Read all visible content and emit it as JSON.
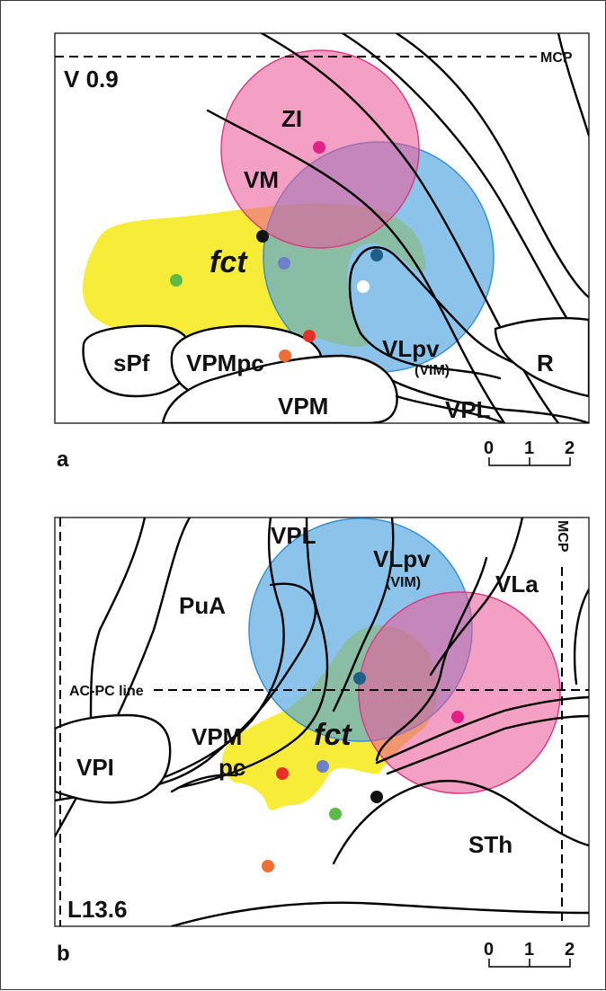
{
  "panel_a": {
    "panel_label": "a",
    "slice_label": "V 0.9",
    "reference_line": "MCP",
    "regions": {
      "zi": "ZI",
      "vm": "VM",
      "fct": "fct",
      "vlpv": "VLpv",
      "vim": "(VIM)",
      "spf": "sPf",
      "vpmpc": "VPMpc",
      "vpm": "VPM",
      "vpl": "VPL",
      "r": "R"
    },
    "scale": {
      "t0": "0",
      "t1": "1",
      "t2": "2"
    }
  },
  "panel_b": {
    "panel_label": "b",
    "slice_label": "L13.6",
    "reference_line": "MCP",
    "acpc_line": "AC-PC line",
    "regions": {
      "vpl": "VPL",
      "vlpv": "VLpv",
      "vim": "(VIM)",
      "vla": "VLa",
      "pua": "PuA",
      "vpm": "VPM",
      "pc": "pc",
      "vpi": "VPI",
      "fct": "fct",
      "sth": "STh"
    },
    "scale": {
      "t0": "0",
      "t1": "1",
      "t2": "2"
    }
  },
  "colors": {
    "zi_circle": "#ec5a9a",
    "vim_circle": "#4fa3de",
    "fct_region": "#f6ea1c",
    "dot_magenta": "#e6208a",
    "dot_black": "#111111",
    "dot_darkblue": "#1f5e86",
    "dot_white": "#ffffff",
    "dot_periwinkle": "#6c80cc",
    "dot_red": "#e63027",
    "dot_orange": "#ef6e33",
    "dot_green": "#5cbb46"
  }
}
